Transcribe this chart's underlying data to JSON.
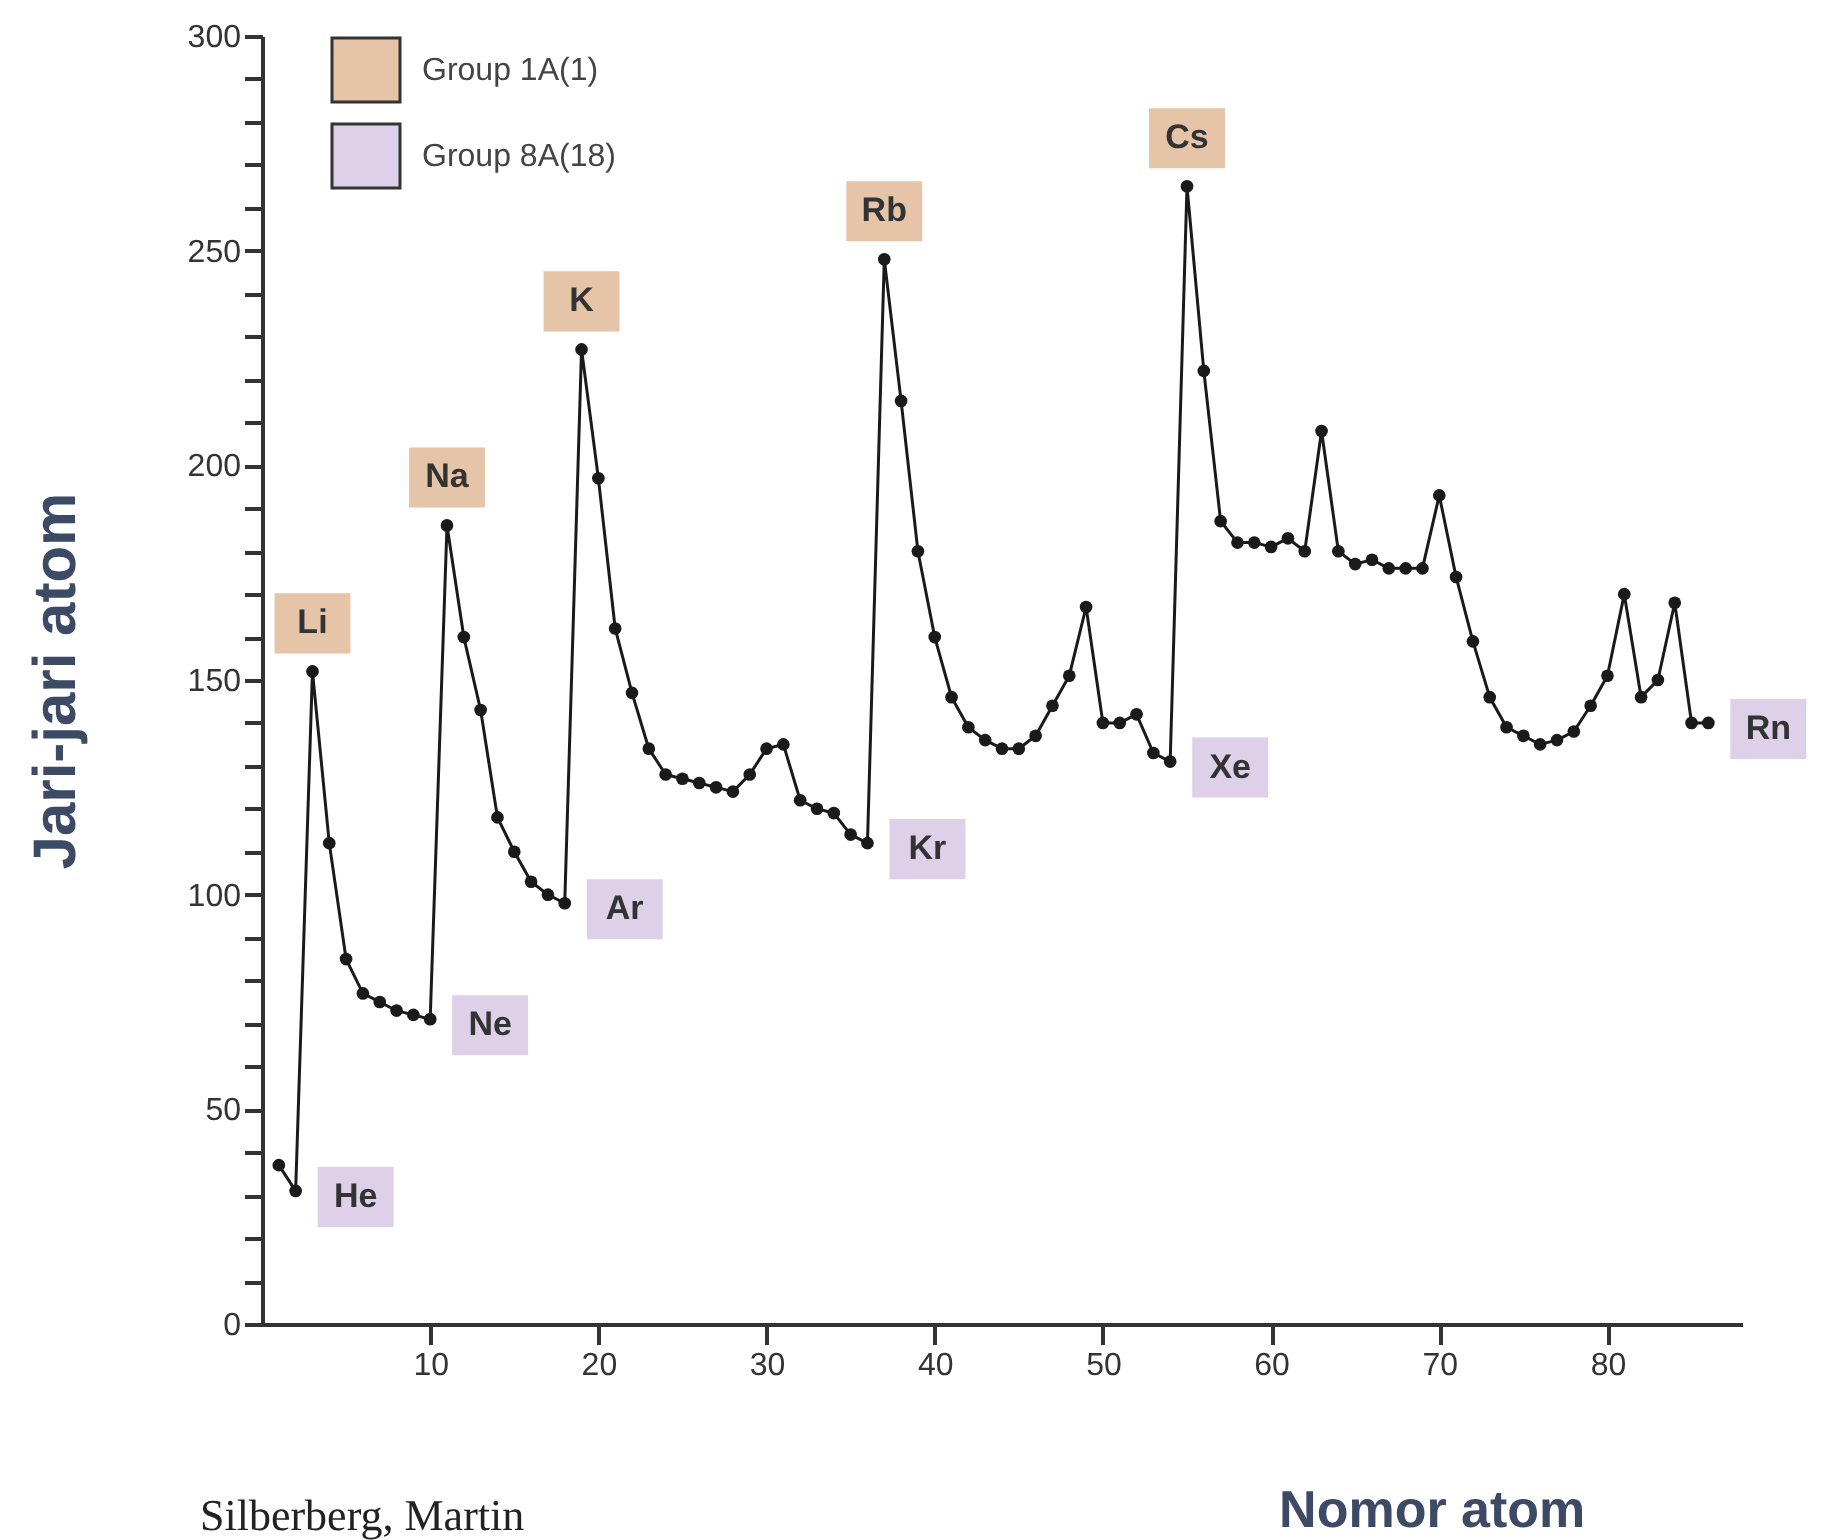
{
  "chart_data": {
    "type": "line",
    "xlabel": "Nomor atom",
    "ylabel": "Jari-jari atom",
    "marker": "circle",
    "grid": false,
    "xlim": [
      0,
      88
    ],
    "xticks": [
      10,
      20,
      30,
      40,
      50,
      60,
      70,
      80
    ],
    "ylim": [
      0,
      300
    ],
    "yticks": [
      0,
      {
        "value": 10,
        "label": null
      },
      {
        "value": 20,
        "label": null
      },
      {
        "value": 30,
        "label": null
      },
      {
        "value": 40,
        "label": null
      },
      50,
      {
        "value": 60,
        "label": null
      },
      {
        "value": 70,
        "label": null
      },
      {
        "value": 80,
        "label": null
      },
      {
        "value": 90,
        "label": null
      },
      100,
      {
        "value": 110,
        "label": null
      },
      {
        "value": 120,
        "label": null
      },
      {
        "value": 130,
        "label": null
      },
      {
        "value": 140,
        "label": null
      },
      150,
      {
        "value": 160,
        "label": null
      },
      {
        "value": 170,
        "label": null
      },
      {
        "value": 180,
        "label": null
      },
      {
        "value": 190,
        "label": null
      },
      200,
      {
        "value": 210,
        "label": null
      },
      {
        "value": 220,
        "label": null
      },
      {
        "value": 230,
        "label": null
      },
      {
        "value": 240,
        "label": null
      },
      250,
      {
        "value": 260,
        "label": null
      },
      {
        "value": 270,
        "label": null
      },
      {
        "value": 280,
        "label": null
      },
      {
        "value": 290,
        "label": null
      },
      300
    ],
    "x": [
      1,
      2,
      3,
      4,
      5,
      6,
      7,
      8,
      9,
      10,
      11,
      12,
      13,
      14,
      15,
      16,
      17,
      18,
      19,
      20,
      21,
      22,
      23,
      24,
      25,
      26,
      27,
      28,
      29,
      30,
      31,
      32,
      33,
      34,
      35,
      36,
      37,
      38,
      39,
      40,
      41,
      42,
      43,
      44,
      45,
      46,
      47,
      48,
      49,
      50,
      51,
      52,
      53,
      54,
      55,
      56,
      57,
      58,
      59,
      60,
      61,
      62,
      63,
      64,
      65,
      66,
      67,
      68,
      69,
      70,
      71,
      72,
      73,
      74,
      75,
      76,
      77,
      78,
      79,
      80,
      81,
      82,
      83,
      84,
      85,
      86
    ],
    "series": [
      {
        "color": "#1a1a1a",
        "values": [
          37,
          31,
          152,
          112,
          85,
          77,
          75,
          73,
          72,
          71,
          186,
          160,
          143,
          118,
          110,
          103,
          100,
          98,
          227,
          197,
          162,
          147,
          134,
          128,
          127,
          126,
          125,
          124,
          128,
          134,
          135,
          122,
          120,
          119,
          114,
          112,
          248,
          215,
          180,
          160,
          146,
          139,
          136,
          134,
          134,
          137,
          144,
          151,
          167,
          140,
          140,
          142,
          133,
          131,
          265,
          222,
          187,
          182,
          182,
          181,
          183,
          180,
          208,
          180,
          177,
          178,
          176,
          176,
          176,
          193,
          174,
          159,
          146,
          139,
          137,
          135,
          136,
          138,
          144,
          151,
          170,
          146,
          150,
          168,
          140,
          140
        ]
      }
    ],
    "annotations": [
      "Group 1A(1)",
      "Group 8A(18)",
      {
        "text": "Li",
        "x": 3,
        "y": 152
      },
      {
        "text": "Na",
        "x": 11,
        "y": 186
      },
      {
        "text": "K",
        "x": 19,
        "y": 227
      },
      {
        "text": "Rb",
        "x": 37,
        "y": 248
      },
      {
        "text": "Cs",
        "x": 55,
        "y": 265
      },
      {
        "text": "He",
        "x": 2,
        "y": 31
      },
      {
        "text": "Ne",
        "x": 10,
        "y": 71
      },
      {
        "text": "Ar",
        "x": 18,
        "y": 98
      },
      {
        "text": "Kr",
        "x": 36,
        "y": 112
      },
      {
        "text": "Xe",
        "x": 54,
        "y": 131
      },
      {
        "text": "Rn",
        "x": 86,
        "y": 140
      },
      "Silberberg, Martin"
    ]
  }
}
